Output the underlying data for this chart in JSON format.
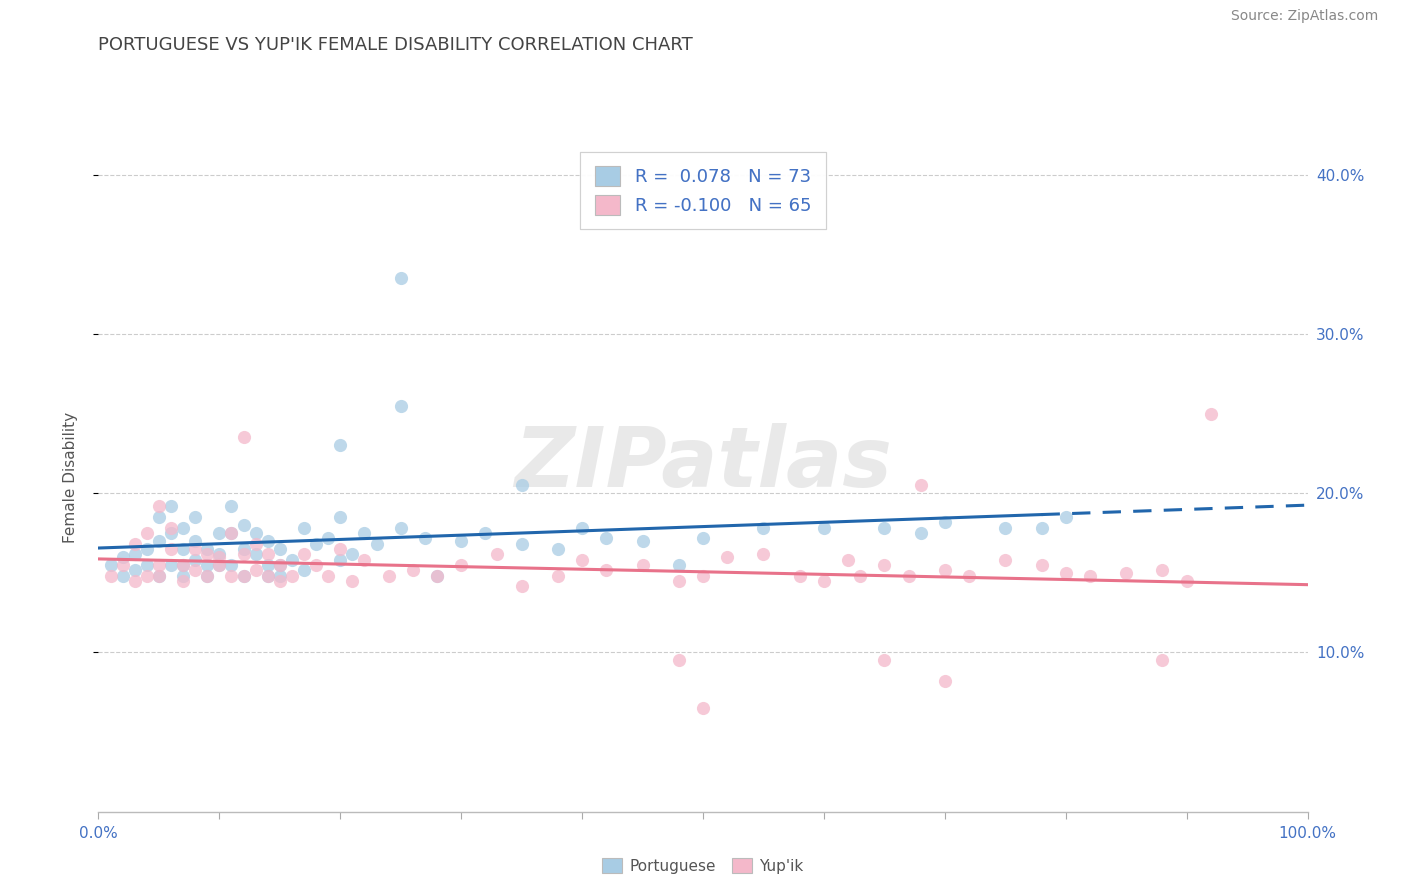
{
  "title": "PORTUGUESE VS YUP'IK FEMALE DISABILITY CORRELATION CHART",
  "source": "Source: ZipAtlas.com",
  "ylabel": "Female Disability",
  "xlim": [
    0.0,
    1.0
  ],
  "ylim": [
    0.0,
    0.42
  ],
  "yticks": [
    0.1,
    0.2,
    0.3,
    0.4
  ],
  "ytick_labels": [
    "10.0%",
    "20.0%",
    "30.0%",
    "40.0%"
  ],
  "xtick_positions": [
    0.0,
    0.1,
    0.2,
    0.3,
    0.4,
    0.5,
    0.6,
    0.7,
    0.8,
    0.9,
    1.0
  ],
  "xtick_labels": [
    "0.0%",
    "",
    "",
    "",
    "",
    "",
    "",
    "",
    "",
    "",
    "100.0%"
  ],
  "portuguese_color": "#a8cce4",
  "yupik_color": "#f4b8ca",
  "portuguese_line_color": "#2166ac",
  "yupik_line_color": "#e8728a",
  "watermark_text": "ZIPatlas",
  "legend_label1": "R =  0.078   N = 73",
  "legend_label2": "R = -0.100   N = 65",
  "legend_bottom1": "Portuguese",
  "legend_bottom2": "Yup'ik",
  "portuguese_scatter_x": [
    0.01,
    0.02,
    0.02,
    0.03,
    0.03,
    0.04,
    0.04,
    0.05,
    0.05,
    0.05,
    0.06,
    0.06,
    0.06,
    0.07,
    0.07,
    0.07,
    0.07,
    0.08,
    0.08,
    0.08,
    0.09,
    0.09,
    0.09,
    0.1,
    0.1,
    0.1,
    0.11,
    0.11,
    0.11,
    0.12,
    0.12,
    0.12,
    0.13,
    0.13,
    0.14,
    0.14,
    0.14,
    0.15,
    0.15,
    0.15,
    0.16,
    0.17,
    0.17,
    0.18,
    0.19,
    0.2,
    0.2,
    0.21,
    0.22,
    0.23,
    0.25,
    0.27,
    0.28,
    0.3,
    0.32,
    0.35,
    0.38,
    0.4,
    0.42,
    0.45,
    0.48,
    0.5,
    0.55,
    0.6,
    0.65,
    0.68,
    0.7,
    0.75,
    0.78,
    0.8,
    0.2,
    0.25,
    0.35
  ],
  "portuguese_scatter_y": [
    0.155,
    0.16,
    0.148,
    0.162,
    0.152,
    0.165,
    0.155,
    0.17,
    0.185,
    0.148,
    0.155,
    0.175,
    0.192,
    0.148,
    0.165,
    0.178,
    0.155,
    0.158,
    0.17,
    0.185,
    0.155,
    0.165,
    0.148,
    0.162,
    0.175,
    0.155,
    0.155,
    0.192,
    0.175,
    0.165,
    0.148,
    0.18,
    0.162,
    0.175,
    0.155,
    0.17,
    0.148,
    0.165,
    0.155,
    0.148,
    0.158,
    0.178,
    0.152,
    0.168,
    0.172,
    0.158,
    0.185,
    0.162,
    0.175,
    0.168,
    0.178,
    0.172,
    0.148,
    0.17,
    0.175,
    0.168,
    0.165,
    0.178,
    0.172,
    0.17,
    0.155,
    0.172,
    0.178,
    0.178,
    0.178,
    0.175,
    0.182,
    0.178,
    0.178,
    0.185,
    0.23,
    0.255,
    0.205
  ],
  "yupik_scatter_x": [
    0.01,
    0.02,
    0.03,
    0.03,
    0.04,
    0.04,
    0.05,
    0.05,
    0.05,
    0.06,
    0.06,
    0.07,
    0.07,
    0.08,
    0.08,
    0.09,
    0.09,
    0.1,
    0.1,
    0.11,
    0.11,
    0.12,
    0.12,
    0.13,
    0.13,
    0.14,
    0.14,
    0.15,
    0.15,
    0.16,
    0.17,
    0.18,
    0.19,
    0.2,
    0.21,
    0.22,
    0.24,
    0.26,
    0.28,
    0.3,
    0.33,
    0.35,
    0.38,
    0.4,
    0.42,
    0.45,
    0.48,
    0.5,
    0.52,
    0.55,
    0.58,
    0.6,
    0.62,
    0.63,
    0.65,
    0.67,
    0.7,
    0.72,
    0.75,
    0.78,
    0.8,
    0.82,
    0.85,
    0.88,
    0.9
  ],
  "yupik_scatter_y": [
    0.148,
    0.155,
    0.145,
    0.168,
    0.148,
    0.175,
    0.155,
    0.192,
    0.148,
    0.165,
    0.178,
    0.155,
    0.145,
    0.165,
    0.152,
    0.162,
    0.148,
    0.16,
    0.155,
    0.148,
    0.175,
    0.162,
    0.148,
    0.152,
    0.168,
    0.148,
    0.162,
    0.155,
    0.145,
    0.148,
    0.162,
    0.155,
    0.148,
    0.165,
    0.145,
    0.158,
    0.148,
    0.152,
    0.148,
    0.155,
    0.162,
    0.142,
    0.148,
    0.158,
    0.152,
    0.155,
    0.145,
    0.148,
    0.16,
    0.162,
    0.148,
    0.145,
    0.158,
    0.148,
    0.155,
    0.148,
    0.152,
    0.148,
    0.158,
    0.155,
    0.15,
    0.148,
    0.15,
    0.152,
    0.145
  ],
  "yupik_outliers_x": [
    0.12,
    0.48,
    0.65,
    0.68,
    0.92,
    0.5,
    0.88,
    0.7
  ],
  "yupik_outliers_y": [
    0.235,
    0.095,
    0.095,
    0.205,
    0.25,
    0.065,
    0.095,
    0.082
  ],
  "portuguese_outlier_x": [
    0.25
  ],
  "portuguese_outlier_y": [
    0.335
  ]
}
